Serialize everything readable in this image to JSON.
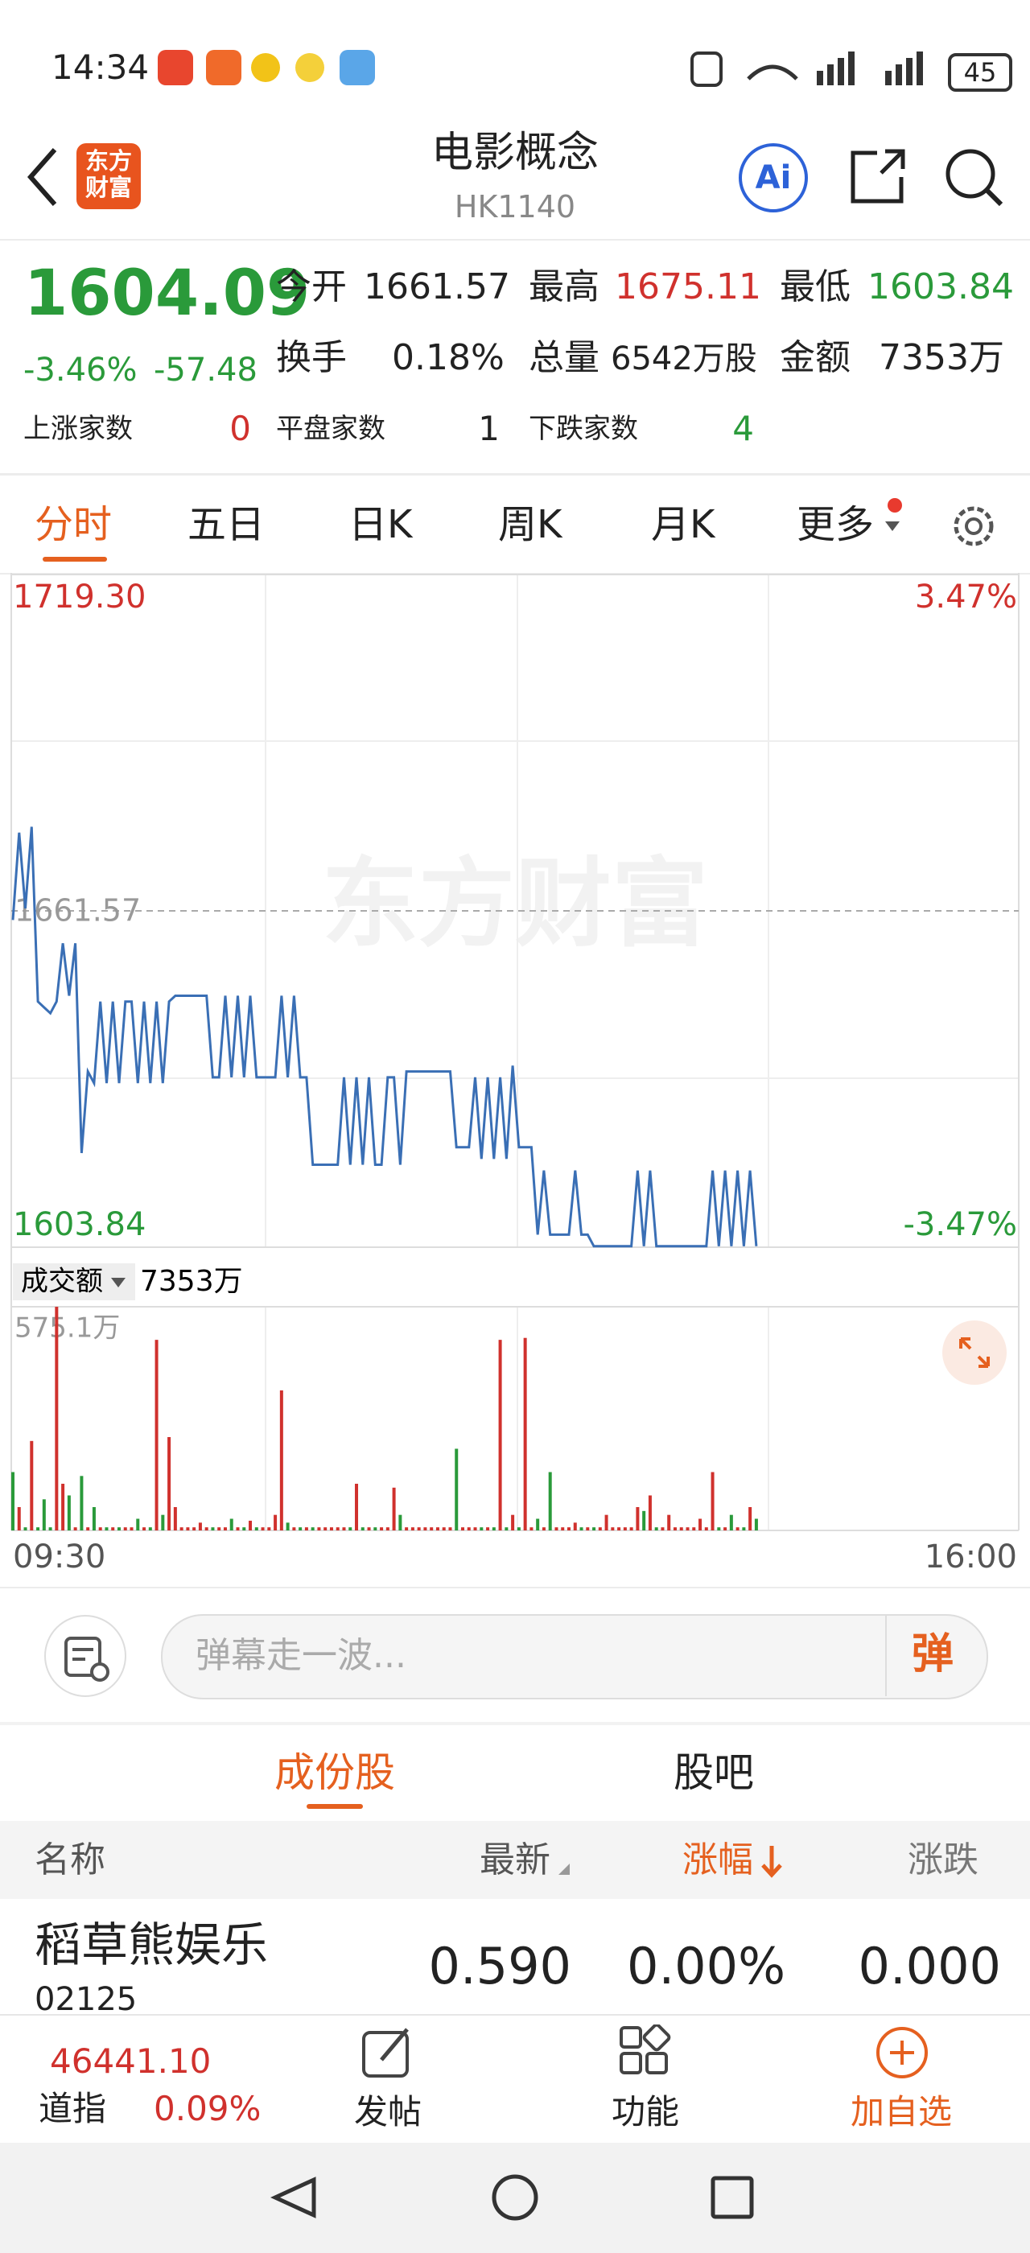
{
  "status_bar": {
    "time": "14:34",
    "battery": "45"
  },
  "header": {
    "logo": [
      "东方",
      "财富"
    ],
    "title": "电影概念",
    "code": "HK1140",
    "ai": "Ai"
  },
  "quote": {
    "price": "1604.09",
    "change_pct": "-3.46%",
    "change": "-57.48",
    "stats": [
      {
        "label": "今开",
        "value": "1661.57"
      },
      {
        "label": "最高",
        "value": "1675.11"
      },
      {
        "label": "最低",
        "value": "1603.84"
      },
      {
        "label": "换手",
        "value": "0.18%"
      },
      {
        "label": "总量",
        "value": "6542万股"
      },
      {
        "label": "金额",
        "value": "7353万"
      }
    ],
    "breadth": [
      {
        "label": "上涨家数",
        "value": "0"
      },
      {
        "label": "平盘家数",
        "value": "1"
      },
      {
        "label": "下跌家数",
        "value": "4"
      }
    ]
  },
  "tabs": [
    "分时",
    "五日",
    "日K",
    "周K",
    "月K",
    "更多"
  ],
  "chart": {
    "type": "line",
    "price_top": {
      "value": 1719.3,
      "label": "1719.30"
    },
    "price_bottom": 1603.84,
    "prev_close": 1661.57,
    "pct_top": "3.47%",
    "pct_bottom": "-3.47%",
    "color": "#3a6fb5",
    "watermark": "东方财富",
    "values": [
      1660,
      1675,
      1662,
      1676,
      1646,
      1645,
      1644,
      1646,
      1656,
      1647,
      1656,
      1620,
      1634,
      1632,
      1646,
      1632,
      1646,
      1632,
      1646,
      1646,
      1632,
      1646,
      1632,
      1646,
      1632,
      1646,
      1647,
      1647,
      1647,
      1647,
      1647,
      1647,
      1633,
      1633,
      1647,
      1633,
      1647,
      1633,
      1647,
      1633,
      1633,
      1633,
      1633,
      1647,
      1633,
      1647,
      1633,
      1633,
      1618,
      1618,
      1618,
      1618,
      1618,
      1633,
      1618,
      1633,
      1618,
      1633,
      1618,
      1618,
      1633,
      1633,
      1618,
      1634,
      1634,
      1634,
      1634,
      1634,
      1634,
      1634,
      1634,
      1621,
      1621,
      1621,
      1633,
      1619,
      1633,
      1619,
      1633,
      1619,
      1635,
      1621,
      1621,
      1621,
      1606,
      1617,
      1606,
      1606,
      1606,
      1606,
      1617,
      1606,
      1606,
      1604,
      1604,
      1604,
      1604,
      1604,
      1604,
      1604,
      1617,
      1604,
      1617,
      1604,
      1604,
      1604,
      1604,
      1604,
      1604,
      1604,
      1604,
      1604,
      1617,
      1604,
      1617,
      1604,
      1617,
      1604,
      1617,
      1604
    ],
    "volume_label": "成交额",
    "volume_total": "7353万",
    "volume_max": {
      "value": 575.1,
      "label": "575.1万"
    },
    "volume": [
      150,
      60,
      8,
      230,
      8,
      80,
      8,
      575,
      120,
      90,
      8,
      140,
      8,
      60,
      8,
      8,
      8,
      8,
      8,
      8,
      30,
      8,
      8,
      490,
      40,
      240,
      60,
      8,
      8,
      8,
      20,
      8,
      8,
      8,
      8,
      30,
      8,
      8,
      25,
      8,
      8,
      8,
      40,
      360,
      20,
      8,
      8,
      8,
      8,
      8,
      8,
      8,
      8,
      8,
      8,
      120,
      8,
      8,
      8,
      8,
      8,
      110,
      40,
      8,
      8,
      8,
      8,
      8,
      8,
      8,
      8,
      210,
      8,
      8,
      8,
      8,
      8,
      8,
      490,
      8,
      40,
      8,
      495,
      8,
      30,
      8,
      150,
      8,
      8,
      8,
      20,
      8,
      8,
      8,
      8,
      40,
      8,
      8,
      8,
      8,
      60,
      50,
      90,
      8,
      8,
      40,
      8,
      8,
      8,
      8,
      30,
      8,
      150,
      8,
      8,
      40,
      8,
      8,
      60,
      30
    ],
    "time_start": "09:30",
    "time_end": "16:00"
  },
  "comment": {
    "placeholder": "弹幕走一波...",
    "button": "弹"
  },
  "section_tabs": [
    "成份股",
    "股吧"
  ],
  "table": {
    "columns": [
      "名称",
      "最新",
      "涨幅",
      "涨跌"
    ],
    "rows": [
      {
        "name": "稻草熊娱乐",
        "code": "02125",
        "cells": [
          "0.590",
          "0.00%",
          "0.000"
        ]
      }
    ]
  },
  "bottom_bar": {
    "index_value": "46441.10",
    "index_name": "道指",
    "index_change": "0.09%",
    "actions": [
      "发帖",
      "功能",
      "加自选"
    ]
  }
}
